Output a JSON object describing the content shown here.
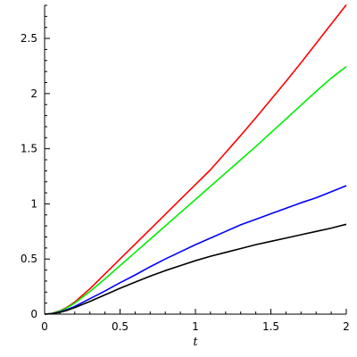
{
  "chart_data": {
    "type": "line",
    "title": "",
    "xlabel": "t",
    "ylabel": "",
    "xlim": [
      0,
      2
    ],
    "ylim": [
      0,
      2.8
    ],
    "grid": false,
    "legend": "none",
    "x_ticks": [
      {
        "value": 0,
        "label": "0"
      },
      {
        "value": 0.5,
        "label": "0.5"
      },
      {
        "value": 1,
        "label": "1"
      },
      {
        "value": 1.5,
        "label": "1.5"
      },
      {
        "value": 2,
        "label": "2"
      }
    ],
    "y_ticks": [
      {
        "value": 0,
        "label": "0"
      },
      {
        "value": 0.5,
        "label": "0.5"
      },
      {
        "value": 1,
        "label": "1"
      },
      {
        "value": 1.5,
        "label": "1.5"
      },
      {
        "value": 2,
        "label": "2"
      },
      {
        "value": 2.5,
        "label": "2.5"
      }
    ],
    "x": [
      0,
      0.05,
      0.1,
      0.15,
      0.2,
      0.3,
      0.4,
      0.5,
      0.6,
      0.7,
      0.8,
      0.9,
      1.0,
      1.1,
      1.2,
      1.3,
      1.4,
      1.5,
      1.6,
      1.7,
      1.8,
      1.9,
      2.0
    ],
    "series": [
      {
        "color": "#ff0000",
        "values": [
          0,
          0.008,
          0.03,
          0.063,
          0.11,
          0.23,
          0.365,
          0.5,
          0.635,
          0.77,
          0.905,
          1.04,
          1.175,
          1.31,
          1.465,
          1.62,
          1.78,
          1.945,
          2.11,
          2.28,
          2.455,
          2.63,
          2.805
        ]
      },
      {
        "color": "#00ee00",
        "values": [
          0,
          0.007,
          0.027,
          0.058,
          0.1,
          0.205,
          0.32,
          0.44,
          0.56,
          0.68,
          0.8,
          0.92,
          1.04,
          1.16,
          1.28,
          1.4,
          1.52,
          1.645,
          1.77,
          1.895,
          2.02,
          2.14,
          2.245
        ]
      },
      {
        "color": "#0000ff",
        "values": [
          0,
          0.005,
          0.02,
          0.042,
          0.07,
          0.14,
          0.21,
          0.285,
          0.355,
          0.43,
          0.5,
          0.565,
          0.63,
          0.69,
          0.75,
          0.81,
          0.86,
          0.91,
          0.96,
          1.01,
          1.055,
          1.11,
          1.165
        ]
      },
      {
        "color": "#000000",
        "values": [
          0,
          0.004,
          0.016,
          0.035,
          0.06,
          0.115,
          0.175,
          0.235,
          0.29,
          0.345,
          0.395,
          0.44,
          0.485,
          0.525,
          0.56,
          0.595,
          0.63,
          0.66,
          0.69,
          0.72,
          0.75,
          0.78,
          0.815
        ]
      }
    ]
  }
}
